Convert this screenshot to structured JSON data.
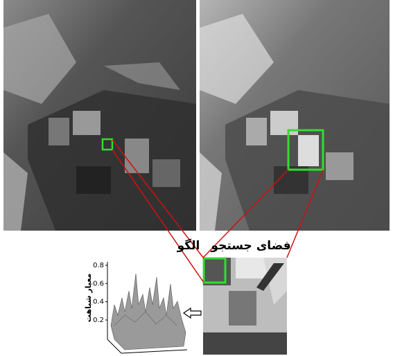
{
  "labels": {
    "template": "الگو",
    "search_space": "فضای جستجو"
  },
  "plot": {
    "ylabel": "معیار شباهت",
    "yticks": [
      0.2,
      0.4,
      0.6,
      0.8
    ]
  }
}
